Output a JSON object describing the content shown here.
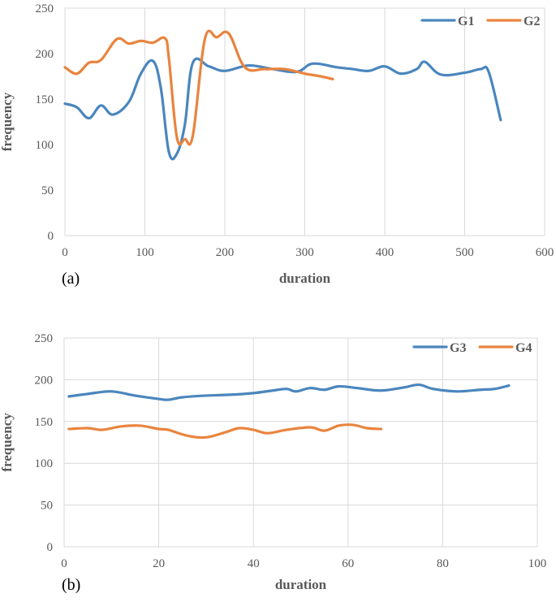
{
  "chart_data": [
    {
      "type": "line",
      "panel_label": "(a)",
      "title": "",
      "xlabel": "duration",
      "ylabel": "frequency",
      "xlim": [
        0,
        600
      ],
      "ylim": [
        0,
        250
      ],
      "xticks": [
        "0",
        "100",
        "200",
        "300",
        "400",
        "500",
        "600"
      ],
      "yticks": [
        "0",
        "50",
        "100",
        "150",
        "200",
        "250"
      ],
      "grid": "vertical",
      "legend_position": "top-right",
      "series": [
        {
          "name": "G1",
          "color": "#4A86BD",
          "x": [
            0,
            15,
            30,
            45,
            60,
            80,
            95,
            110,
            120,
            130,
            140,
            150,
            160,
            180,
            200,
            230,
            260,
            290,
            310,
            340,
            360,
            380,
            400,
            420,
            440,
            450,
            470,
            500,
            520,
            530,
            545
          ],
          "y": [
            145,
            141,
            129,
            143,
            133,
            147,
            178,
            192,
            162,
            92,
            90,
            122,
            190,
            186,
            181,
            187,
            183,
            180,
            189,
            185,
            183,
            181,
            186,
            178,
            183,
            191,
            177,
            179,
            183,
            180,
            127
          ]
        },
        {
          "name": "G2",
          "color": "#E9843E",
          "x": [
            0,
            15,
            30,
            45,
            65,
            80,
            95,
            110,
            125,
            130,
            140,
            150,
            160,
            175,
            190,
            205,
            225,
            250,
            275,
            300,
            320,
            335
          ],
          "y": [
            185,
            178,
            190,
            193,
            216,
            211,
            214,
            212,
            217,
            195,
            108,
            106,
            110,
            216,
            218,
            222,
            185,
            183,
            183,
            178,
            175,
            172
          ]
        }
      ]
    },
    {
      "type": "line",
      "panel_label": "(b)",
      "title": "",
      "xlabel": "duration",
      "ylabel": "frequency",
      "xlim": [
        0,
        100
      ],
      "ylim": [
        0,
        250
      ],
      "xticks": [
        "0",
        "20",
        "40",
        "60",
        "80",
        "100"
      ],
      "yticks": [
        "0",
        "50",
        "100",
        "150",
        "200",
        "250"
      ],
      "grid": "both",
      "legend_position": "top-right",
      "series": [
        {
          "name": "G3",
          "color": "#4A86BD",
          "x": [
            1,
            5,
            10,
            15,
            20,
            22,
            25,
            30,
            35,
            40,
            44,
            47,
            49,
            52,
            55,
            58,
            62,
            67,
            72,
            75,
            78,
            83,
            88,
            91,
            94
          ],
          "y": [
            180,
            183,
            186,
            181,
            177,
            176,
            179,
            181,
            182,
            184,
            187,
            189,
            186,
            190,
            188,
            192,
            190,
            187,
            191,
            194,
            189,
            186,
            188,
            189,
            193
          ]
        },
        {
          "name": "G4",
          "color": "#E9843E",
          "x": [
            1,
            5,
            8,
            12,
            16,
            20,
            22,
            26,
            30,
            34,
            37,
            40,
            43,
            47,
            52,
            55,
            58,
            61,
            64,
            67
          ],
          "y": [
            141,
            142,
            140,
            144,
            145,
            141,
            140,
            133,
            131,
            137,
            142,
            140,
            136,
            140,
            143,
            139,
            145,
            146,
            142,
            141
          ]
        }
      ]
    }
  ]
}
